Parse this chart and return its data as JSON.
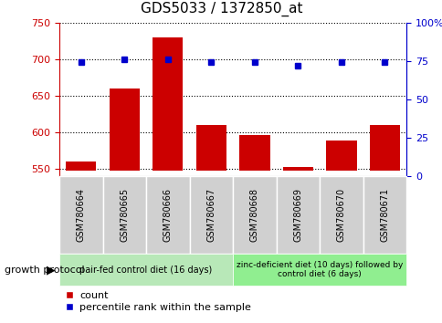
{
  "title": "GDS5033 / 1372850_at",
  "samples": [
    "GSM780664",
    "GSM780665",
    "GSM780666",
    "GSM780667",
    "GSM780668",
    "GSM780669",
    "GSM780670",
    "GSM780671"
  ],
  "counts": [
    560,
    660,
    730,
    610,
    596,
    553,
    589,
    610
  ],
  "percentiles": [
    74,
    76,
    76,
    74,
    74,
    72,
    74,
    74
  ],
  "ylim_left": [
    540,
    750
  ],
  "ylim_right": [
    0,
    100
  ],
  "yticks_left": [
    550,
    600,
    650,
    700,
    750
  ],
  "yticks_right": [
    0,
    25,
    50,
    75,
    100
  ],
  "bar_color": "#cc0000",
  "dot_color": "#0000cc",
  "grid_color": "#000000",
  "group1_label": "pair-fed control diet (16 days)",
  "group2_label": "zinc-deficient diet (10 days) followed by\ncontrol diet (6 days)",
  "group1_indices": [
    0,
    1,
    2,
    3
  ],
  "group2_indices": [
    4,
    5,
    6,
    7
  ],
  "group1_color": "#b8e8b8",
  "group2_color": "#90ee90",
  "header_color": "#d0d0d0",
  "protocol_label": "growth protocol",
  "legend_count_label": "count",
  "legend_pct_label": "percentile rank within the sample",
  "bar_bottom": 547,
  "title_color": "#000000",
  "left_axis_color": "#cc0000",
  "right_axis_color": "#0000cc"
}
